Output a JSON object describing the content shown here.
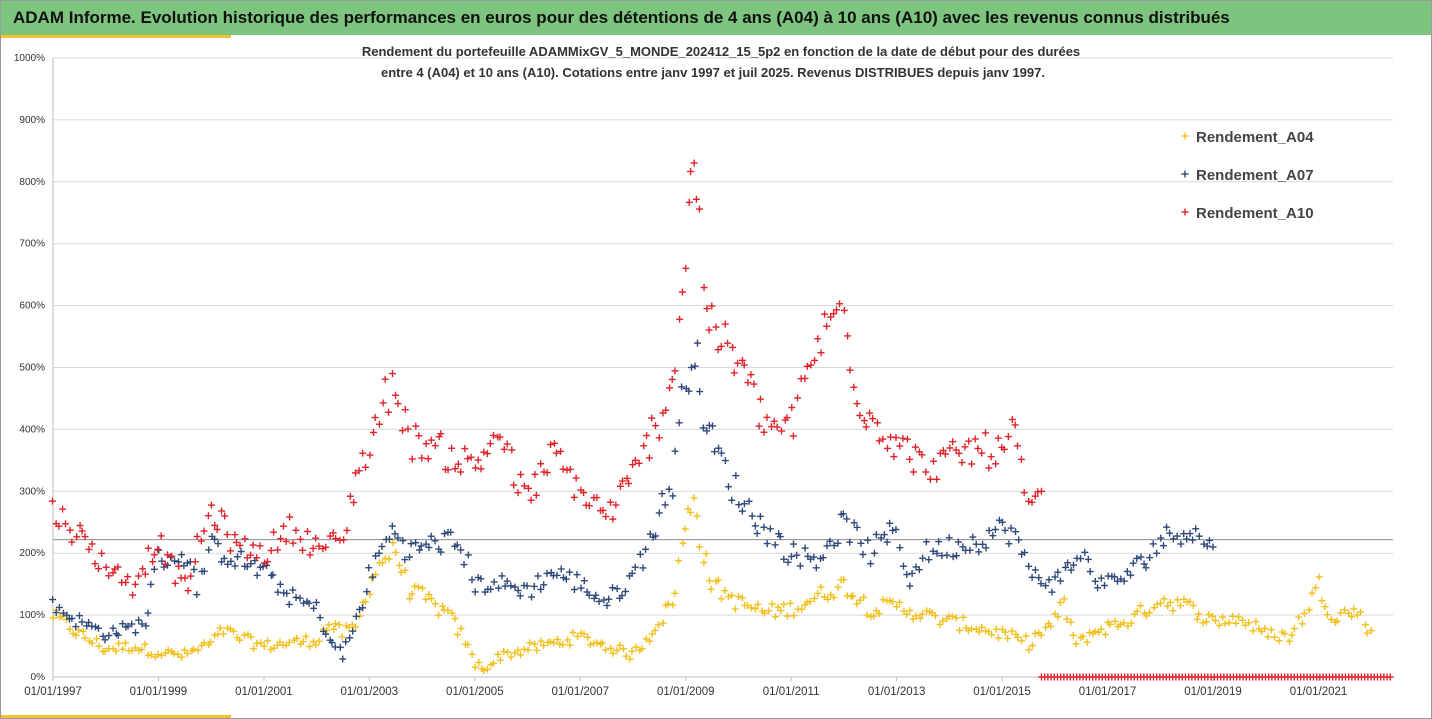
{
  "banner": {
    "title": "ADAM Informe. Evolution historique des performances en euros pour des détentions de 4 ans (A04) à 10 ans (A10) avec les revenus connus distribués"
  },
  "colors": {
    "banner_bg": "#7dc47f",
    "accent": "#f4c430",
    "A04": "#f2c01e",
    "A07": "#2f4a7a",
    "A10": "#e0232a"
  },
  "chart_data": {
    "type": "scatter",
    "title_lines": [
      "Rendement du portefeuille ADAMMixGV_5_MONDE_202412_15_5p2 en fonction de la date de début pour des durées",
      "entre 4 (A04) et 10 ans (A10). Cotations entre janv 1997 et juil 2025. Revenus DISTRIBUES depuis janv 1997."
    ],
    "x_range": [
      "1997-01-01",
      "2022-06-01"
    ],
    "x_ticks": [
      "01/01/1997",
      "01/01/1999",
      "01/01/2001",
      "01/01/2003",
      "01/01/2005",
      "01/01/2007",
      "01/01/2009",
      "01/01/2011",
      "01/01/2013",
      "01/01/2015",
      "01/01/2017",
      "01/01/2019",
      "01/01/2021"
    ],
    "ylim": [
      0,
      1000
    ],
    "y_ticks": [
      "0%",
      "100%",
      "200%",
      "300%",
      "400%",
      "500%",
      "600%",
      "700%",
      "800%",
      "900%",
      "1000%"
    ],
    "grid": "horizontal",
    "reference_line_y": 222,
    "legend_position": "top-right",
    "marker": "+",
    "series": [
      {
        "name": "Rendement_A04",
        "color_key": "A04",
        "points": [
          [
            "1997-01",
            100
          ],
          [
            "1997-07",
            70
          ],
          [
            "1998-01",
            45
          ],
          [
            "1998-07",
            50
          ],
          [
            "1999-01",
            40
          ],
          [
            "1999-07",
            35
          ],
          [
            "2000-01",
            55
          ],
          [
            "2000-04",
            75
          ],
          [
            "2000-07",
            65
          ],
          [
            "2001-01",
            50
          ],
          [
            "2001-07",
            55
          ],
          [
            "2002-01",
            60
          ],
          [
            "2002-04",
            85
          ],
          [
            "2002-07",
            70
          ],
          [
            "2002-10",
            80
          ],
          [
            "2003-01",
            150
          ],
          [
            "2003-04",
            190
          ],
          [
            "2003-07",
            205
          ],
          [
            "2003-10",
            140
          ],
          [
            "2004-01",
            130
          ],
          [
            "2004-07",
            100
          ],
          [
            "2004-10",
            70
          ],
          [
            "2005-01",
            20
          ],
          [
            "2005-04",
            15
          ],
          [
            "2005-07",
            35
          ],
          [
            "2006-01",
            45
          ],
          [
            "2006-07",
            55
          ],
          [
            "2007-01",
            65
          ],
          [
            "2007-07",
            50
          ],
          [
            "2008-01",
            35
          ],
          [
            "2008-04",
            60
          ],
          [
            "2008-07",
            90
          ],
          [
            "2008-10",
            120
          ],
          [
            "2009-01",
            240
          ],
          [
            "2009-03",
            295
          ],
          [
            "2009-05",
            200
          ],
          [
            "2009-07",
            150
          ],
          [
            "2010-01",
            120
          ],
          [
            "2010-07",
            105
          ],
          [
            "2011-01",
            110
          ],
          [
            "2011-07",
            130
          ],
          [
            "2012-01",
            150
          ],
          [
            "2012-07",
            110
          ],
          [
            "2013-01",
            115
          ],
          [
            "2013-07",
            100
          ],
          [
            "2014-01",
            90
          ],
          [
            "2014-07",
            80
          ],
          [
            "2015-01",
            70
          ],
          [
            "2015-07",
            55
          ],
          [
            "2016-01",
            90
          ],
          [
            "2016-03",
            120
          ],
          [
            "2016-06",
            50
          ],
          [
            "2016-09",
            70
          ],
          [
            "2017-01",
            80
          ],
          [
            "2017-07",
            95
          ],
          [
            "2018-01",
            125
          ],
          [
            "2018-07",
            115
          ],
          [
            "2019-01",
            90
          ],
          [
            "2019-07",
            95
          ],
          [
            "2020-01",
            70
          ],
          [
            "2020-07",
            65
          ],
          [
            "2021-01",
            150
          ],
          [
            "2021-04",
            100
          ],
          [
            "2021-10",
            105
          ],
          [
            "2022-01",
            75
          ]
        ]
      },
      {
        "name": "Rendement_A07",
        "color_key": "A07",
        "points": [
          [
            "1997-01",
            115
          ],
          [
            "1997-07",
            90
          ],
          [
            "1998-01",
            70
          ],
          [
            "1998-07",
            80
          ],
          [
            "1998-10",
            90
          ],
          [
            "1999-01",
            190
          ],
          [
            "1999-07",
            195
          ],
          [
            "1999-10",
            150
          ],
          [
            "2000-01",
            210
          ],
          [
            "2000-07",
            190
          ],
          [
            "2001-01",
            170
          ],
          [
            "2001-07",
            130
          ],
          [
            "2002-01",
            110
          ],
          [
            "2002-04",
            60
          ],
          [
            "2002-07",
            35
          ],
          [
            "2002-10",
            90
          ],
          [
            "2003-01",
            160
          ],
          [
            "2003-04",
            210
          ],
          [
            "2003-07",
            240
          ],
          [
            "2003-10",
            200
          ],
          [
            "2004-01",
            210
          ],
          [
            "2004-07",
            220
          ],
          [
            "2004-10",
            210
          ],
          [
            "2005-01",
            150
          ],
          [
            "2005-07",
            150
          ],
          [
            "2006-01",
            140
          ],
          [
            "2006-07",
            170
          ],
          [
            "2007-01",
            150
          ],
          [
            "2007-07",
            120
          ],
          [
            "2008-01",
            160
          ],
          [
            "2008-07",
            260
          ],
          [
            "2008-10",
            320
          ],
          [
            "2009-01",
            480
          ],
          [
            "2009-03",
            540
          ],
          [
            "2009-05",
            430
          ],
          [
            "2009-07",
            380
          ],
          [
            "2010-01",
            290
          ],
          [
            "2010-07",
            240
          ],
          [
            "2011-01",
            200
          ],
          [
            "2011-07",
            190
          ],
          [
            "2012-01",
            250
          ],
          [
            "2012-07",
            200
          ],
          [
            "2013-01",
            240
          ],
          [
            "2013-04",
            150
          ],
          [
            "2013-07",
            200
          ],
          [
            "2014-01",
            210
          ],
          [
            "2014-07",
            220
          ],
          [
            "2015-01",
            240
          ],
          [
            "2015-04",
            230
          ],
          [
            "2015-07",
            170
          ],
          [
            "2016-01",
            150
          ],
          [
            "2016-07",
            200
          ],
          [
            "2016-10",
            160
          ],
          [
            "2017-01",
            150
          ],
          [
            "2017-07",
            170
          ],
          [
            "2018-01",
            220
          ],
          [
            "2018-07",
            240
          ],
          [
            "2019-01",
            210
          ]
        ]
      },
      {
        "name": "Rendement_A10",
        "color_key": "A10",
        "points": [
          [
            "1997-01",
            270
          ],
          [
            "1997-07",
            230
          ],
          [
            "1998-01",
            180
          ],
          [
            "1998-07",
            150
          ],
          [
            "1999-01",
            220
          ],
          [
            "1999-07",
            140
          ],
          [
            "2000-01",
            270
          ],
          [
            "2000-07",
            210
          ],
          [
            "2001-01",
            200
          ],
          [
            "2001-07",
            240
          ],
          [
            "2002-01",
            210
          ],
          [
            "2002-07",
            220
          ],
          [
            "2002-10",
            330
          ],
          [
            "2003-01",
            370
          ],
          [
            "2003-04",
            440
          ],
          [
            "2003-07",
            480
          ],
          [
            "2003-10",
            380
          ],
          [
            "2004-01",
            380
          ],
          [
            "2004-07",
            360
          ],
          [
            "2005-01",
            340
          ],
          [
            "2005-07",
            400
          ],
          [
            "2005-10",
            320
          ],
          [
            "2006-01",
            290
          ],
          [
            "2006-07",
            360
          ],
          [
            "2007-01",
            300
          ],
          [
            "2007-07",
            260
          ],
          [
            "2008-01",
            320
          ],
          [
            "2008-07",
            420
          ],
          [
            "2008-10",
            480
          ],
          [
            "2009-01",
            680
          ],
          [
            "2009-03",
            860
          ],
          [
            "2009-05",
            650
          ],
          [
            "2009-07",
            560
          ],
          [
            "2010-01",
            510
          ],
          [
            "2010-07",
            410
          ],
          [
            "2011-01",
            400
          ],
          [
            "2011-07",
            540
          ],
          [
            "2012-01",
            600
          ],
          [
            "2012-04",
            460
          ],
          [
            "2012-07",
            420
          ],
          [
            "2013-01",
            380
          ],
          [
            "2013-07",
            340
          ],
          [
            "2014-01",
            350
          ],
          [
            "2014-07",
            370
          ],
          [
            "2015-01",
            360
          ],
          [
            "2015-04",
            400
          ],
          [
            "2015-07",
            260
          ],
          [
            "2015-10",
            300
          ]
        ],
        "zero_run": [
          "2015-10",
          "2022-06"
        ]
      }
    ]
  }
}
